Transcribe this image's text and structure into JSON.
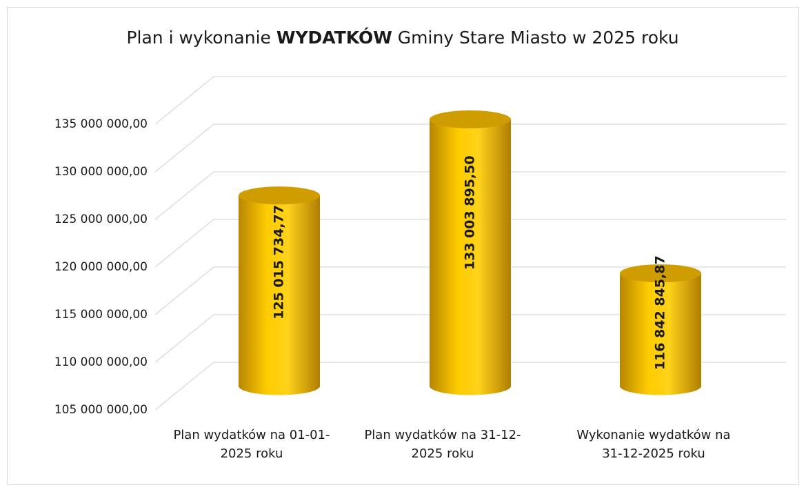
{
  "chart_data": {
    "type": "cylinder-bar",
    "title": [
      "Plan i wykonanie ",
      "WYDATKÓW",
      " Gminy Stare Miasto w 2025 roku"
    ],
    "categories": [
      [
        "Plan wydatków na 01-01-",
        "2025 roku"
      ],
      [
        "Plan wydatków na 31-12-",
        "2025 roku"
      ],
      [
        "Wykonanie wydatków na",
        "31-12-2025 roku"
      ]
    ],
    "values": [
      125015734.77,
      133003895.5,
      116842845.87
    ],
    "value_labels": [
      "125 015 734,77",
      "133 003 895,50",
      "116 842 845,87"
    ],
    "color": "#ffc000",
    "ylim": [
      105000000,
      135000000
    ],
    "yticks": [
      {
        "value": 105000000,
        "label": "105 000 000,00"
      },
      {
        "value": 110000000,
        "label": "110 000 000,00"
      },
      {
        "value": 115000000,
        "label": "115 000 000,00"
      },
      {
        "value": 120000000,
        "label": "120 000 000,00"
      },
      {
        "value": 125000000,
        "label": "125 000 000,00"
      },
      {
        "value": 130000000,
        "label": "130 000 000,00"
      },
      {
        "value": 135000000,
        "label": "135 000 000,00"
      }
    ],
    "grid": true
  }
}
